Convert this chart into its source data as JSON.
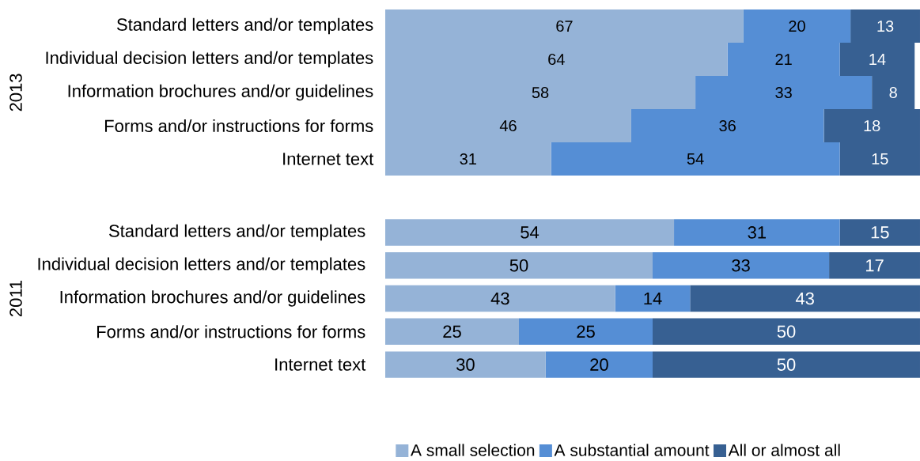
{
  "chart_data": [
    {
      "type": "bar",
      "orientation": "horizontal",
      "stacked": true,
      "ylabel": "2013",
      "categories": [
        "Standard letters and/or templates",
        "Individual decision letters and/or templates",
        "Information brochures and/or guidelines",
        "Forms and/or instructions for forms",
        "Internet text"
      ],
      "series": [
        {
          "color": "#95b3d7",
          "values": [
            67,
            64,
            58,
            46,
            31
          ]
        },
        {
          "color": "#558ed5",
          "values": [
            20,
            21,
            33,
            36,
            54
          ]
        },
        {
          "color": "#376092",
          "values": [
            13,
            14,
            8,
            18,
            15
          ]
        }
      ],
      "data_labels": true,
      "tick_labels": "y"
    },
    {
      "type": "bar",
      "orientation": "horizontal",
      "stacked": true,
      "ylabel": "2011",
      "categories": [
        "Standard letters and/or templates",
        "Individual decision letters and/or templates",
        "Information brochures and/or guidelines",
        "Forms and/or instructions for forms",
        "Internet text"
      ],
      "series": [
        {
          "name": "A small selection",
          "color": "#95b3d7",
          "values": [
            54,
            50,
            43,
            25,
            30
          ]
        },
        {
          "name": "A substantial amount",
          "color": "#558ed5",
          "values": [
            31,
            33,
            14,
            25,
            20
          ]
        },
        {
          "name": "All or almost all",
          "color": "#376092",
          "values": [
            15,
            17,
            43,
            50,
            50
          ]
        }
      ],
      "data_labels": true,
      "tick_labels": "y",
      "legend": "bottom"
    }
  ]
}
